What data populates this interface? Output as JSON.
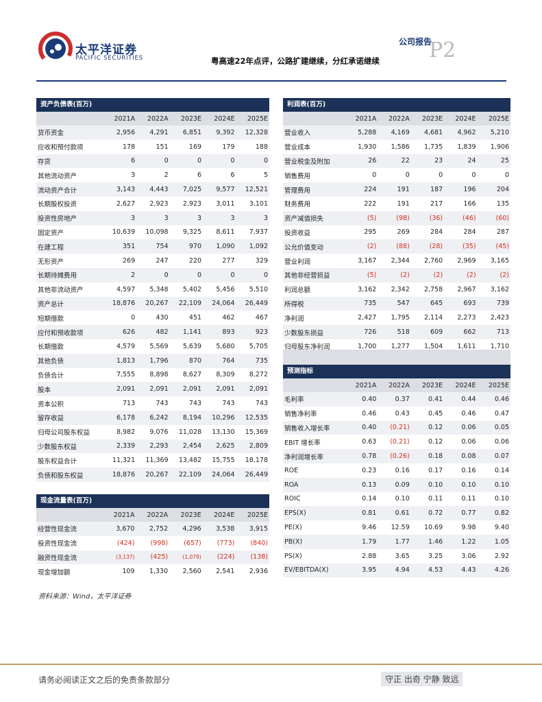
{
  "header": {
    "logo_cn": "太平洋证券",
    "logo_en": "PACIFIC SECURITIES",
    "report_type": "公司报告",
    "page": "P2",
    "title": "粤高速22年点评，公路扩建继续，分红承诺继续"
  },
  "balance_sheet": {
    "title": "资产负债表(百万)",
    "years": [
      "2021A",
      "2022A",
      "2023E",
      "2024E",
      "2025E"
    ],
    "rows": [
      {
        "label": "货币资金",
        "values": [
          "2,956",
          "4,291",
          "6,851",
          "9,392",
          "12,328"
        ]
      },
      {
        "label": "应收和预付款项",
        "values": [
          "178",
          "151",
          "169",
          "179",
          "188"
        ]
      },
      {
        "label": "存货",
        "values": [
          "6",
          "0",
          "0",
          "0",
          "0"
        ]
      },
      {
        "label": "其他流动资产",
        "values": [
          "3",
          "2",
          "6",
          "6",
          "5"
        ]
      },
      {
        "label": "流动资产合计",
        "values": [
          "3,143",
          "4,443",
          "7,025",
          "9,577",
          "12,521"
        ]
      },
      {
        "label": "长期股权投资",
        "values": [
          "2,627",
          "2,923",
          "2,923",
          "3,011",
          "3,101"
        ]
      },
      {
        "label": "投资性房地产",
        "values": [
          "3",
          "3",
          "3",
          "3",
          "3"
        ]
      },
      {
        "label": "固定资产",
        "values": [
          "10,639",
          "10,098",
          "9,325",
          "8,611",
          "7,937"
        ]
      },
      {
        "label": "在建工程",
        "values": [
          "351",
          "754",
          "970",
          "1,090",
          "1,092"
        ]
      },
      {
        "label": "无形资产",
        "values": [
          "269",
          "247",
          "220",
          "277",
          "329"
        ]
      },
      {
        "label": "长期待摊费用",
        "values": [
          "2",
          "0",
          "0",
          "0",
          "0"
        ]
      },
      {
        "label": "其他非流动资产",
        "values": [
          "4,597",
          "5,348",
          "5,402",
          "5,456",
          "5,510"
        ]
      },
      {
        "label": "资产总计",
        "values": [
          "18,876",
          "20,267",
          "22,109",
          "24,064",
          "26,449"
        ]
      },
      {
        "label": "短期借款",
        "values": [
          "0",
          "430",
          "451",
          "462",
          "467"
        ]
      },
      {
        "label": "应付和预收款项",
        "values": [
          "626",
          "482",
          "1,141",
          "893",
          "923"
        ]
      },
      {
        "label": "长期借款",
        "values": [
          "4,579",
          "5,569",
          "5,639",
          "5,680",
          "5,705"
        ]
      },
      {
        "label": "其他负债",
        "values": [
          "1,813",
          "1,796",
          "870",
          "764",
          "735"
        ]
      },
      {
        "label": "负债合计",
        "values": [
          "7,555",
          "8,898",
          "8,627",
          "8,309",
          "8,272"
        ]
      },
      {
        "label": "股本",
        "values": [
          "2,091",
          "2,091",
          "2,091",
          "2,091",
          "2,091"
        ]
      },
      {
        "label": "资本公积",
        "values": [
          "713",
          "743",
          "743",
          "743",
          "743"
        ]
      },
      {
        "label": "留存收益",
        "values": [
          "6,178",
          "6,242",
          "8,194",
          "10,296",
          "12,535"
        ]
      },
      {
        "label": "归母公司股东权益",
        "values": [
          "8,982",
          "9,076",
          "11,028",
          "13,130",
          "15,369"
        ]
      },
      {
        "label": "少数股东权益",
        "values": [
          "2,339",
          "2,293",
          "2,454",
          "2,625",
          "2,809"
        ]
      },
      {
        "label": "股东权益合计",
        "values": [
          "11,321",
          "11,369",
          "13,482",
          "15,755",
          "18,178"
        ]
      },
      {
        "label": "负债和股东权益",
        "values": [
          "18,876",
          "20,267",
          "22,109",
          "24,064",
          "26,449"
        ]
      }
    ]
  },
  "cash_flow": {
    "title": "现金流量表(百万)",
    "years": [
      "2021A",
      "2022A",
      "2023E",
      "2024E",
      "2025E"
    ],
    "rows": [
      {
        "label": "经营性现金流",
        "values": [
          "3,670",
          "2,752",
          "4,296",
          "3,538",
          "3,915"
        ]
      },
      {
        "label": "投资性现金流",
        "values": [
          "(424)",
          "(998)",
          "(657)",
          "(773)",
          "(840)"
        ]
      },
      {
        "label": "融资性现金流",
        "values": [
          "(3,137)",
          "(425)",
          "(1,079)",
          "(224)",
          "(138)"
        ]
      },
      {
        "label": "现金增加额",
        "values": [
          "109",
          "1,330",
          "2,560",
          "2,541",
          "2,936"
        ]
      }
    ]
  },
  "income": {
    "title": "利润表(百万)",
    "years": [
      "2021A",
      "2022A",
      "2023E",
      "2024E",
      "2025E"
    ],
    "rows": [
      {
        "label": "营业收入",
        "values": [
          "5,288",
          "4,169",
          "4,681",
          "4,962",
          "5,210"
        ]
      },
      {
        "label": "营业成本",
        "values": [
          "1,930",
          "1,586",
          "1,735",
          "1,839",
          "1,906"
        ]
      },
      {
        "label": "营业税金及附加",
        "values": [
          "26",
          "22",
          "23",
          "24",
          "25"
        ]
      },
      {
        "label": "销售费用",
        "values": [
          "0",
          "0",
          "0",
          "0",
          "0"
        ]
      },
      {
        "label": "管理费用",
        "values": [
          "224",
          "191",
          "187",
          "196",
          "204"
        ]
      },
      {
        "label": "财务费用",
        "values": [
          "222",
          "191",
          "217",
          "166",
          "135"
        ]
      },
      {
        "label": "资产减值损失",
        "values": [
          "(5)",
          "(98)",
          "(36)",
          "(46)",
          "(60)"
        ]
      },
      {
        "label": "投资收益",
        "values": [
          "295",
          "269",
          "284",
          "284",
          "287"
        ]
      },
      {
        "label": "公允价值变动",
        "values": [
          "(2)",
          "(88)",
          "(28)",
          "(35)",
          "(45)"
        ]
      },
      {
        "label": "营业利润",
        "values": [
          "3,167",
          "2,344",
          "2,760",
          "2,969",
          "3,165"
        ]
      },
      {
        "label": "其他非经营损益",
        "values": [
          "(5)",
          "(2)",
          "(2)",
          "(2)",
          "(2)"
        ]
      },
      {
        "label": "利润总额",
        "values": [
          "3,162",
          "2,342",
          "2,758",
          "2,967",
          "3,162"
        ]
      },
      {
        "label": "所得税",
        "values": [
          "735",
          "547",
          "645",
          "693",
          "739"
        ]
      },
      {
        "label": "净利润",
        "values": [
          "2,427",
          "1,795",
          "2,114",
          "2,273",
          "2,423"
        ]
      },
      {
        "label": "少数股东损益",
        "values": [
          "726",
          "518",
          "609",
          "662",
          "713"
        ]
      },
      {
        "label": "归母股东净利润",
        "values": [
          "1,700",
          "1,277",
          "1,504",
          "1,611",
          "1,710"
        ]
      }
    ]
  },
  "forecast": {
    "title": "预测指标",
    "years": [
      "2021A",
      "2022A",
      "2023E",
      "2024E",
      "2025E"
    ],
    "rows": [
      {
        "label": "毛利率",
        "values": [
          "0.40",
          "0.37",
          "0.41",
          "0.44",
          "0.46"
        ]
      },
      {
        "label": "销售净利率",
        "values": [
          "0.46",
          "0.43",
          "0.45",
          "0.46",
          "0.47"
        ]
      },
      {
        "label": "销售收入增长率",
        "values": [
          "0.40",
          "(0.21)",
          "0.12",
          "0.06",
          "0.05"
        ]
      },
      {
        "label": "EBIT 增长率",
        "values": [
          "0.63",
          "(0.21)",
          "0.12",
          "0.06",
          "0.06"
        ]
      },
      {
        "label": "净利润增长率",
        "values": [
          "0.78",
          "(0.26)",
          "0.18",
          "0.08",
          "0.07"
        ]
      },
      {
        "label": "ROE",
        "values": [
          "0.23",
          "0.16",
          "0.17",
          "0.16",
          "0.14"
        ]
      },
      {
        "label": "ROA",
        "values": [
          "0.13",
          "0.09",
          "0.10",
          "0.10",
          "0.10"
        ]
      },
      {
        "label": "ROIC",
        "values": [
          "0.14",
          "0.10",
          "0.11",
          "0.11",
          "0.10"
        ]
      },
      {
        "label": "EPS(X)",
        "values": [
          "0.81",
          "0.61",
          "0.72",
          "0.77",
          "0.82"
        ]
      },
      {
        "label": "PE(X)",
        "values": [
          "9.46",
          "12.59",
          "10.69",
          "9.98",
          "9.40"
        ]
      },
      {
        "label": "PB(X)",
        "values": [
          "1.79",
          "1.77",
          "1.46",
          "1.22",
          "1.05"
        ]
      },
      {
        "label": "PS(X)",
        "values": [
          "2.88",
          "3.65",
          "3.25",
          "3.06",
          "2.92"
        ]
      },
      {
        "label": "EV/EBITDA(X)",
        "values": [
          "3.95",
          "4.94",
          "4.53",
          "4.43",
          "4.26"
        ]
      }
    ]
  },
  "source": "资料来源：Wind，太平洋证券",
  "footer": {
    "left": "请务必阅读正文之后的免责条款部分",
    "right": "守正 出奇 宁静 致远"
  },
  "colors": {
    "navy": "#1b3157",
    "brand": "#1a3a78",
    "negative": "#d42d1a",
    "band": "#dcdee4",
    "gold": "#b89c62"
  }
}
